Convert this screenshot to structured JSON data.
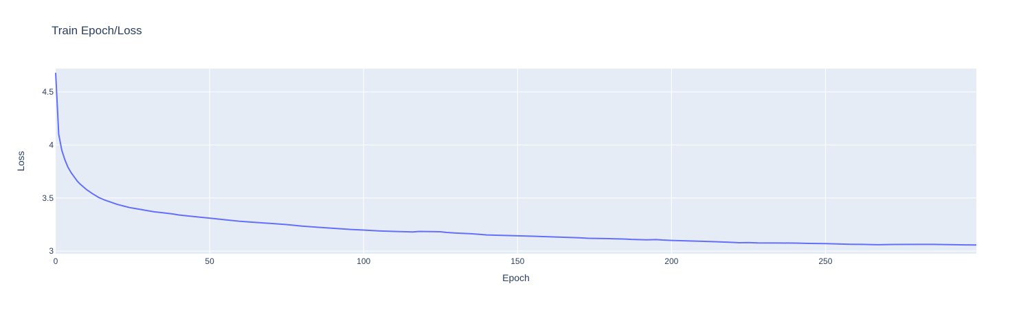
{
  "chart_data": {
    "type": "line",
    "title": "Train Epoch/Loss",
    "xlabel": "Epoch",
    "ylabel": "Loss",
    "xlim": [
      0,
      299
    ],
    "ylim": [
      2.975,
      4.72
    ],
    "xticks": [
      0,
      50,
      100,
      150,
      200,
      250
    ],
    "xtick_labels": [
      "0",
      "50",
      "100",
      "150",
      "200",
      "250"
    ],
    "yticks": [
      3,
      3.5,
      4,
      4.5
    ],
    "ytick_labels": [
      "3",
      "3.5",
      "4",
      "4.5"
    ],
    "grid": true,
    "series_color": "#636efa",
    "plot_bg": "#e5ecf6",
    "series": [
      {
        "x": [
          0,
          1,
          2,
          3,
          4,
          5,
          6,
          7,
          8,
          10,
          12,
          14,
          16,
          18,
          20,
          22,
          24,
          26,
          28,
          30,
          32,
          35,
          38,
          40,
          45,
          50,
          55,
          60,
          65,
          70,
          75,
          80,
          85,
          90,
          95,
          100,
          105,
          110,
          116,
          118,
          125,
          127,
          130,
          135,
          138,
          140,
          145,
          150,
          155,
          160,
          165,
          170,
          173,
          178,
          180,
          185,
          187,
          192,
          195,
          197,
          200,
          205,
          210,
          215,
          220,
          222,
          225,
          228,
          235,
          240,
          245,
          250,
          255,
          258,
          262,
          267,
          272,
          280,
          285,
          290,
          295,
          299
        ],
        "y": [
          4.68,
          4.1,
          3.95,
          3.86,
          3.79,
          3.74,
          3.7,
          3.66,
          3.63,
          3.58,
          3.54,
          3.505,
          3.48,
          3.46,
          3.44,
          3.425,
          3.41,
          3.4,
          3.39,
          3.38,
          3.37,
          3.36,
          3.35,
          3.34,
          3.325,
          3.31,
          3.295,
          3.28,
          3.27,
          3.26,
          3.25,
          3.235,
          3.225,
          3.215,
          3.205,
          3.198,
          3.19,
          3.185,
          3.18,
          3.185,
          3.182,
          3.175,
          3.17,
          3.163,
          3.157,
          3.152,
          3.148,
          3.144,
          3.14,
          3.135,
          3.13,
          3.125,
          3.12,
          3.118,
          3.117,
          3.113,
          3.11,
          3.106,
          3.108,
          3.104,
          3.1,
          3.096,
          3.092,
          3.087,
          3.082,
          3.078,
          3.08,
          3.077,
          3.076,
          3.075,
          3.072,
          3.07,
          3.066,
          3.064,
          3.063,
          3.06,
          3.062,
          3.063,
          3.063,
          3.061,
          3.058,
          3.057
        ]
      }
    ]
  }
}
